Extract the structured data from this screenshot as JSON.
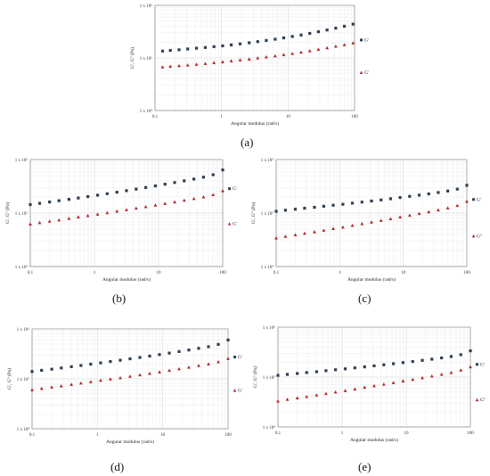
{
  "chart_data": [
    {
      "panel": "(a)",
      "type": "scatter",
      "xscale": "log",
      "yscale": "log",
      "xlabel": "Angular modulus (rad/s)",
      "ylabel": "G', G'' (Pa)",
      "xticks": [
        "0.1",
        "1",
        "10",
        "100"
      ],
      "ytick_labels": [
        "1 x 10⁴",
        "1 x 10⁵",
        "1 x 10⁶"
      ],
      "xlim": [
        0.1,
        100
      ],
      "ylim": [
        10000,
        1000000
      ],
      "grid": true,
      "legend_position": "right",
      "series": [
        {
          "name": "G'",
          "color": "#2f3f4f",
          "marker": "square",
          "x": [
            0.13,
            0.17,
            0.23,
            0.31,
            0.42,
            0.57,
            0.77,
            1.04,
            1.4,
            1.9,
            2.6,
            3.5,
            4.7,
            6.4,
            8.6,
            11.6,
            15.7,
            21.2,
            28.6,
            38.6,
            52.1,
            70.3,
            94.9
          ],
          "y": [
            135000,
            139000,
            143000,
            148000,
            153000,
            158000,
            164000,
            170000,
            177000,
            185000,
            194000,
            204000,
            215000,
            227000,
            241000,
            256000,
            273000,
            293000,
            315000,
            340000,
            368000,
            400000,
            440000
          ]
        },
        {
          "name": "G'",
          "color": "#b22222",
          "marker": "triangle",
          "x": [
            0.13,
            0.17,
            0.23,
            0.31,
            0.42,
            0.57,
            0.77,
            1.04,
            1.4,
            1.9,
            2.6,
            3.5,
            4.7,
            6.4,
            8.6,
            11.6,
            15.7,
            21.2,
            28.6,
            38.6,
            52.1,
            70.3,
            94.9
          ],
          "y": [
            67000,
            69000,
            71000,
            73000,
            75500,
            78000,
            81000,
            84000,
            87500,
            91000,
            95000,
            99500,
            104000,
            109000,
            115000,
            121000,
            128000,
            136000,
            145000,
            155000,
            166000,
            178000,
            192000
          ]
        }
      ]
    },
    {
      "panel": "(b)",
      "type": "scatter",
      "xscale": "log",
      "yscale": "log",
      "xlabel": "Angular modulus (rad/s)",
      "ylabel": "G', G'' (Pa)",
      "xticks": [
        "0.1",
        "1",
        "10",
        "100"
      ],
      "ytick_labels": [
        "1 x 10⁴",
        "1 x 10⁵",
        "1 x 10⁶"
      ],
      "xlim": [
        0.1,
        100
      ],
      "ylim": [
        10000,
        1000000
      ],
      "grid": true,
      "legend_position": "right",
      "series": [
        {
          "name": "G'",
          "color": "#2f3f4f",
          "marker": "square",
          "x": [
            0.1,
            0.14,
            0.2,
            0.28,
            0.4,
            0.56,
            0.79,
            1.12,
            1.58,
            2.24,
            3.16,
            4.47,
            6.31,
            8.91,
            12.6,
            17.8,
            25.1,
            35.5,
            50.1,
            70.8,
            100
          ],
          "y": [
            144000,
            152000,
            161000,
            170000,
            180000,
            191000,
            203000,
            216000,
            230000,
            245000,
            262000,
            280000,
            300000,
            322000,
            346000,
            372000,
            400000,
            432000,
            468000,
            520000,
            640000
          ]
        },
        {
          "name": "G'",
          "color": "#b22222",
          "marker": "triangle",
          "x": [
            0.1,
            0.14,
            0.2,
            0.28,
            0.4,
            0.56,
            0.79,
            1.12,
            1.58,
            2.24,
            3.16,
            4.47,
            6.31,
            8.91,
            12.6,
            17.8,
            25.1,
            35.5,
            50.1,
            70.8,
            100
          ],
          "y": [
            62000,
            66000,
            70000,
            74000,
            79000,
            84000,
            89000,
            95000,
            101000,
            108000,
            115000,
            123000,
            131000,
            140000,
            150000,
            161000,
            173000,
            186000,
            200000,
            220000,
            260000
          ]
        }
      ]
    },
    {
      "panel": "(c)",
      "type": "scatter",
      "xscale": "log",
      "yscale": "log",
      "xlabel": "Angular modulus (rad/s)",
      "ylabel": "G', G'' (Pa)",
      "xticks": [
        "0.1",
        "1",
        "10",
        "100"
      ],
      "ytick_labels": [
        "1 x 10⁴",
        "1 x 10⁵",
        "1 x 10⁶"
      ],
      "xlim": [
        0.1,
        100
      ],
      "ylim": [
        10000,
        1000000
      ],
      "grid": true,
      "legend_position": "right",
      "series": [
        {
          "name": "G'",
          "color": "#2f3f4f",
          "marker": "square",
          "x": [
            0.1,
            0.14,
            0.2,
            0.28,
            0.4,
            0.56,
            0.79,
            1.12,
            1.58,
            2.24,
            3.16,
            4.47,
            6.31,
            8.91,
            12.6,
            17.8,
            25.1,
            35.5,
            50.1,
            70.8,
            100
          ],
          "y": [
            108000,
            113000,
            118000,
            123000,
            128000,
            134000,
            140000,
            146000,
            153000,
            160000,
            168000,
            176000,
            185000,
            195000,
            205000,
            216000,
            228000,
            242000,
            258000,
            280000,
            330000
          ]
        },
        {
          "name": "G''",
          "color": "#b22222",
          "marker": "triangle",
          "x": [
            0.1,
            0.14,
            0.2,
            0.28,
            0.4,
            0.56,
            0.79,
            1.12,
            1.58,
            2.24,
            3.16,
            4.47,
            6.31,
            8.91,
            12.6,
            17.8,
            25.1,
            35.5,
            50.1,
            70.8,
            100
          ],
          "y": [
            34000,
            36500,
            39000,
            41500,
            44500,
            47500,
            51000,
            54500,
            58500,
            63000,
            67500,
            72500,
            78000,
            84000,
            90500,
            97500,
            105000,
            114000,
            124000,
            138000,
            165000
          ]
        }
      ]
    },
    {
      "panel": "(d)",
      "type": "scatter",
      "xscale": "log",
      "yscale": "log",
      "xlabel": "Angular modulus (rad/s)",
      "ylabel": "G', G'' (Pa)",
      "xticks": [
        "0.1",
        "1",
        "10",
        "100"
      ],
      "ytick_labels": [
        "1 x 10⁴",
        "1 x 10⁵",
        "1 x 10⁶"
      ],
      "xlim": [
        0.1,
        100
      ],
      "ylim": [
        10000,
        1000000
      ],
      "grid": true,
      "legend_position": "right",
      "series": [
        {
          "name": "G'",
          "color": "#2f3f4f",
          "marker": "square",
          "x": [
            0.1,
            0.14,
            0.2,
            0.28,
            0.4,
            0.56,
            0.79,
            1.12,
            1.58,
            2.24,
            3.16,
            4.47,
            6.31,
            8.91,
            12.6,
            17.8,
            25.1,
            35.5,
            50.1,
            70.8,
            100
          ],
          "y": [
            140000,
            148000,
            156000,
            165000,
            175000,
            185000,
            197000,
            209000,
            222000,
            236000,
            252000,
            268000,
            286000,
            306000,
            328000,
            352000,
            378000,
            408000,
            440000,
            490000,
            600000
          ]
        },
        {
          "name": "G'",
          "color": "#b22222",
          "marker": "triangle",
          "x": [
            0.1,
            0.14,
            0.2,
            0.28,
            0.4,
            0.56,
            0.79,
            1.12,
            1.58,
            2.24,
            3.16,
            4.47,
            6.31,
            8.91,
            12.6,
            17.8,
            25.1,
            35.5,
            50.1,
            70.8,
            100
          ],
          "y": [
            60000,
            64000,
            68000,
            72000,
            77000,
            82000,
            87000,
            93000,
            99000,
            105000,
            112000,
            120000,
            128000,
            137000,
            147000,
            158000,
            170000,
            183000,
            198000,
            218000,
            255000
          ]
        }
      ]
    },
    {
      "panel": "(e)",
      "type": "scatter",
      "xscale": "log",
      "yscale": "log",
      "xlabel": "Angular modulus (rad/s)",
      "ylabel": "G', G'' (Pa)",
      "xticks": [
        "0.1",
        "1",
        "10",
        "100"
      ],
      "ytick_labels": [
        "1 x 10⁴",
        "1 x 10⁵",
        "1 x 10⁶"
      ],
      "xlim": [
        0.1,
        100
      ],
      "ylim": [
        10000,
        1000000
      ],
      "grid": true,
      "legend_position": "right",
      "series": [
        {
          "name": "G'",
          "color": "#2f3f4f",
          "marker": "square",
          "x": [
            0.1,
            0.14,
            0.2,
            0.28,
            0.4,
            0.56,
            0.79,
            1.12,
            1.58,
            2.24,
            3.16,
            4.47,
            6.31,
            8.91,
            12.6,
            17.8,
            25.1,
            35.5,
            50.1,
            70.8,
            100
          ],
          "y": [
            108000,
            113000,
            118000,
            123000,
            128000,
            134000,
            140000,
            146000,
            153000,
            160000,
            168000,
            176000,
            185000,
            195000,
            205000,
            216000,
            228000,
            242000,
            258000,
            280000,
            335000
          ]
        },
        {
          "name": "G''",
          "color": "#b22222",
          "marker": "triangle",
          "x": [
            0.1,
            0.14,
            0.2,
            0.28,
            0.4,
            0.56,
            0.79,
            1.12,
            1.58,
            2.24,
            3.16,
            4.47,
            6.31,
            8.91,
            12.6,
            17.8,
            25.1,
            35.5,
            50.1,
            70.8,
            100
          ],
          "y": [
            33000,
            35500,
            38000,
            40500,
            43500,
            46500,
            50000,
            53500,
            57500,
            62000,
            66500,
            71500,
            77000,
            83000,
            89500,
            96500,
            104000,
            113000,
            123000,
            137000,
            160000
          ]
        }
      ]
    }
  ]
}
